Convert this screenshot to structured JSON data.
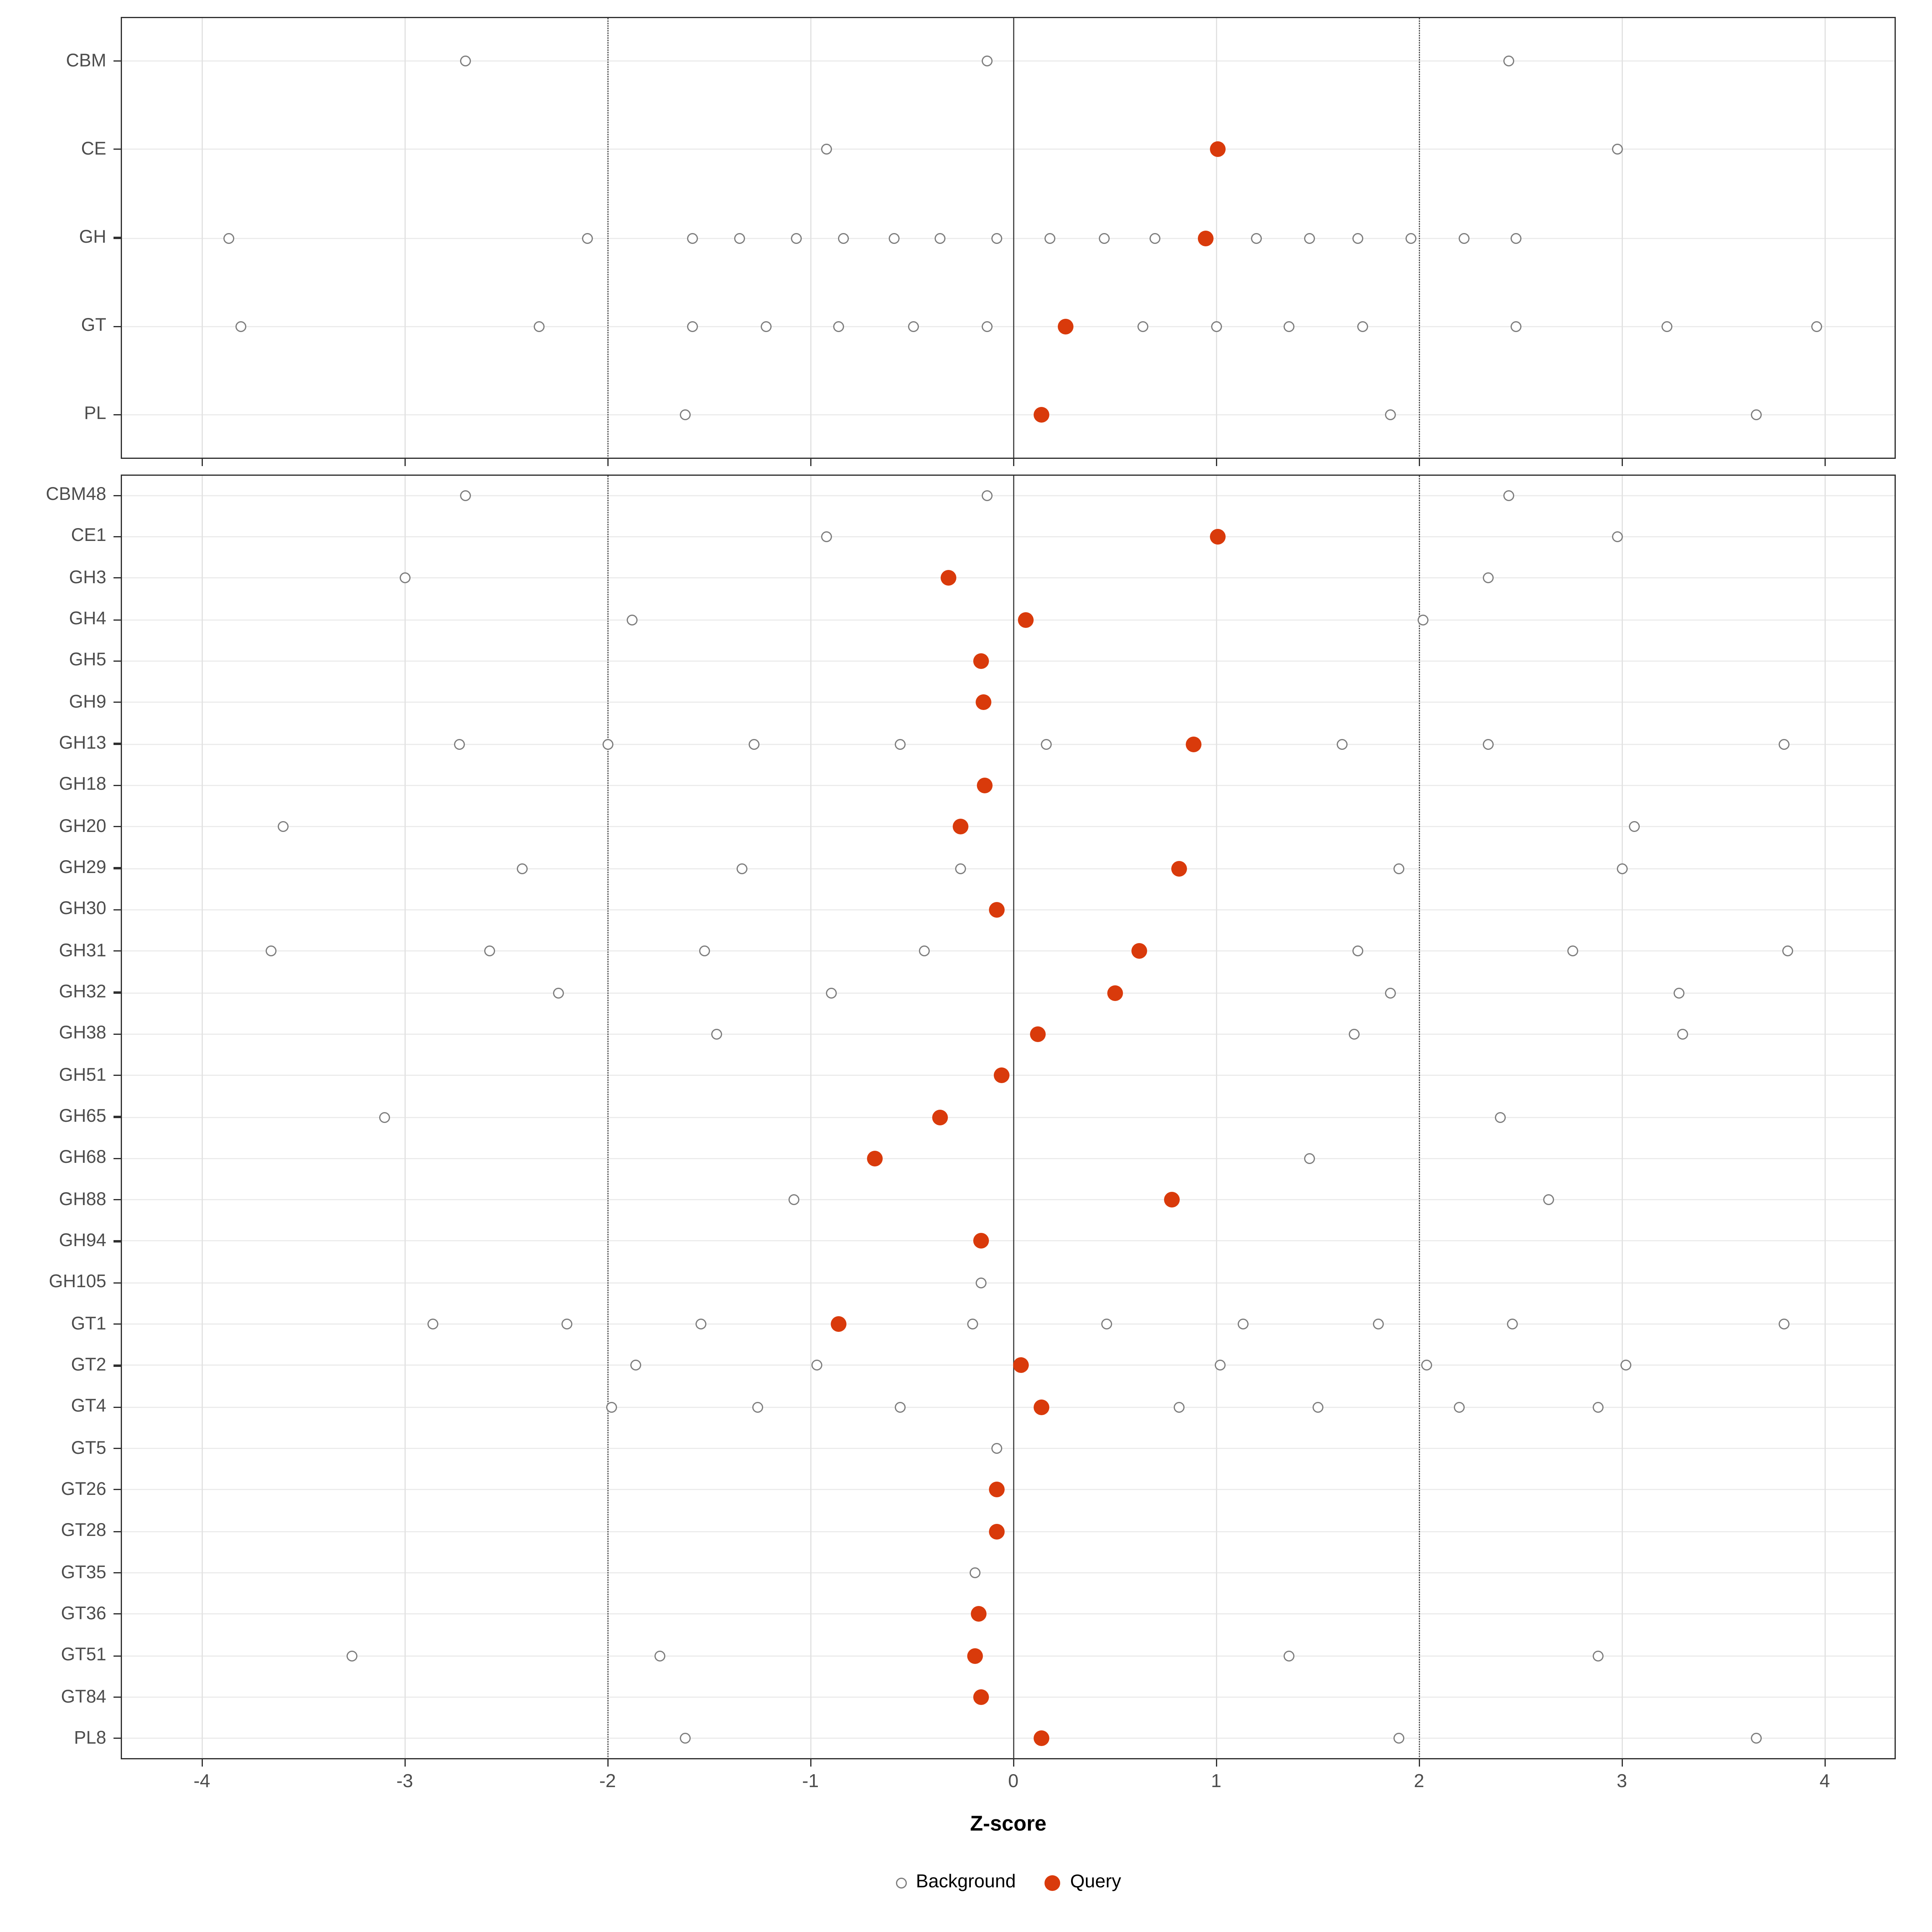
{
  "chart_data": {
    "type": "scatter",
    "subtype": "dot-plot",
    "title": "",
    "xlabel": "Z-score",
    "ylabel": "",
    "xlim": [
      -4.4,
      4.35
    ],
    "x_ticks": [
      -4,
      -3,
      -2,
      -1,
      0,
      1,
      2,
      3,
      4
    ],
    "grid": true,
    "reference_lines": {
      "solid_x": [
        0
      ],
      "dotted_x": [
        -2,
        2
      ]
    },
    "colors": {
      "query": "#d93a0b",
      "background_stroke": "#7d7d7d",
      "grid_major": "#e4e4e4",
      "axis_text": "#4d4d4d",
      "panel_border": "#2f2f2f",
      "reference_line": "#4a4a4a"
    },
    "legend": {
      "position": "bottom",
      "items": [
        {
          "label": "Background",
          "marker": "open-circle",
          "color": "#7d7d7d"
        },
        {
          "label": "Query",
          "marker": "filled-circle",
          "color": "#d93a0b"
        }
      ]
    },
    "panels": [
      {
        "name": "top-panel",
        "rows": [
          {
            "label": "CBM",
            "background": [
              -2.7,
              -0.13,
              2.44
            ],
            "query": []
          },
          {
            "label": "CE",
            "background": [
              -0.92,
              2.98
            ],
            "query": [
              1.01
            ]
          },
          {
            "label": "GH",
            "background": [
              -3.87,
              -2.1,
              -1.58,
              -1.35,
              -1.07,
              -0.84,
              -0.59,
              -0.36,
              -0.08,
              0.18,
              0.45,
              0.7,
              1.2,
              1.46,
              1.7,
              1.96,
              2.22,
              2.48
            ],
            "query": [
              0.95
            ]
          },
          {
            "label": "GT",
            "background": [
              -3.81,
              -2.34,
              -1.58,
              -1.22,
              -0.86,
              -0.49,
              -0.13,
              0.64,
              1.0,
              1.36,
              1.72,
              2.48,
              3.22,
              3.96
            ],
            "query": [
              0.26
            ]
          },
          {
            "label": "PL",
            "background": [
              -1.62,
              1.86,
              3.66
            ],
            "query": [
              0.14
            ]
          }
        ]
      },
      {
        "name": "bottom-panel",
        "rows": [
          {
            "label": "CBM48",
            "background": [
              -2.7,
              -0.13,
              2.44
            ],
            "query": []
          },
          {
            "label": "CE1",
            "background": [
              -0.92,
              2.98
            ],
            "query": [
              1.01
            ]
          },
          {
            "label": "GH3",
            "background": [
              -3.0,
              2.34
            ],
            "query": [
              -0.32
            ]
          },
          {
            "label": "GH4",
            "background": [
              -1.88,
              2.02
            ],
            "query": [
              0.06
            ]
          },
          {
            "label": "GH5",
            "background": [],
            "query": [
              -0.16
            ]
          },
          {
            "label": "GH9",
            "background": [],
            "query": [
              -0.15
            ]
          },
          {
            "label": "GH13",
            "background": [
              -2.73,
              -2.0,
              -1.28,
              -0.56,
              0.16,
              1.62,
              2.34,
              3.8
            ],
            "query": [
              0.89
            ]
          },
          {
            "label": "GH18",
            "background": [],
            "query": [
              -0.14
            ]
          },
          {
            "label": "GH20",
            "background": [
              -3.6,
              3.06
            ],
            "query": [
              -0.26
            ]
          },
          {
            "label": "GH29",
            "background": [
              -2.42,
              -1.34,
              -0.26,
              1.9,
              3.0
            ],
            "query": [
              0.82
            ]
          },
          {
            "label": "GH30",
            "background": [],
            "query": [
              -0.08
            ]
          },
          {
            "label": "GH31",
            "background": [
              -3.66,
              -2.58,
              -1.52,
              -0.44,
              1.7,
              2.76,
              3.82
            ],
            "query": [
              0.62
            ]
          },
          {
            "label": "GH32",
            "background": [
              -2.24,
              -0.9,
              1.86,
              3.28
            ],
            "query": [
              0.5
            ]
          },
          {
            "label": "GH38",
            "background": [
              -1.46,
              1.68,
              3.3
            ],
            "query": [
              0.12
            ]
          },
          {
            "label": "GH51",
            "background": [],
            "query": [
              -0.06
            ]
          },
          {
            "label": "GH65",
            "background": [
              -3.1,
              2.4
            ],
            "query": [
              -0.36
            ]
          },
          {
            "label": "GH68",
            "background": [
              1.46
            ],
            "query": [
              -0.68
            ]
          },
          {
            "label": "GH88",
            "background": [
              -1.08,
              2.64
            ],
            "query": [
              0.78
            ]
          },
          {
            "label": "GH94",
            "background": [],
            "query": [
              -0.16
            ]
          },
          {
            "label": "GH105",
            "background": [
              -0.16
            ],
            "query": []
          },
          {
            "label": "GT1",
            "background": [
              -2.86,
              -2.2,
              -1.54,
              -0.2,
              0.46,
              1.13,
              1.8,
              2.46,
              3.8
            ],
            "query": [
              -0.86
            ]
          },
          {
            "label": "GT2",
            "background": [
              -1.86,
              -0.97,
              1.02,
              2.04,
              3.02
            ],
            "query": [
              0.04
            ]
          },
          {
            "label": "GT4",
            "background": [
              -1.98,
              -1.26,
              -0.56,
              0.82,
              1.5,
              2.2,
              2.88
            ],
            "query": [
              0.14
            ]
          },
          {
            "label": "GT5",
            "background": [
              -0.08
            ],
            "query": []
          },
          {
            "label": "GT26",
            "background": [],
            "query": [
              -0.08
            ]
          },
          {
            "label": "GT28",
            "background": [],
            "query": [
              -0.08
            ]
          },
          {
            "label": "GT35",
            "background": [
              -0.19
            ],
            "query": []
          },
          {
            "label": "GT36",
            "background": [],
            "query": [
              -0.17
            ]
          },
          {
            "label": "GT51",
            "background": [
              -3.26,
              -1.74,
              1.36,
              2.88
            ],
            "query": [
              -0.19
            ]
          },
          {
            "label": "GT84",
            "background": [],
            "query": [
              -0.16
            ]
          },
          {
            "label": "PL8",
            "background": [
              -1.62,
              1.9,
              3.66
            ],
            "query": [
              0.14
            ]
          }
        ]
      }
    ]
  }
}
